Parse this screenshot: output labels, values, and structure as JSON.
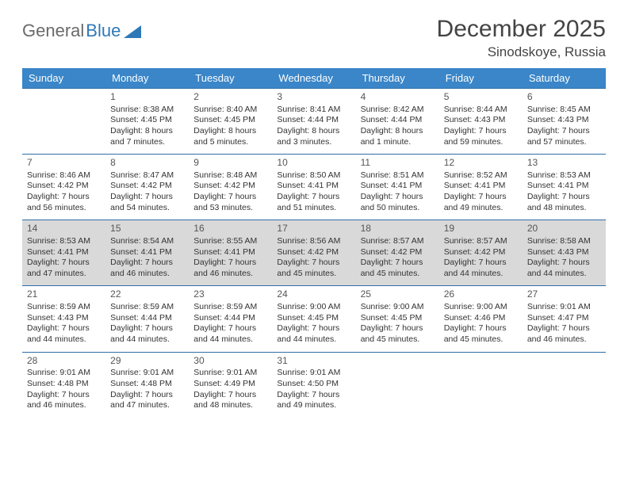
{
  "brand": {
    "part1": "General",
    "part2": "Blue"
  },
  "title": "December 2025",
  "location": "Sinodskoye, Russia",
  "colors": {
    "header_bg": "#3a86c8",
    "header_text": "#ffffff",
    "row_border": "#2f6fa8",
    "highlight_bg": "#d9d9d9",
    "text": "#333333",
    "brand_gray": "#6a6a6a",
    "brand_blue": "#2f78b7"
  },
  "day_headers": [
    "Sunday",
    "Monday",
    "Tuesday",
    "Wednesday",
    "Thursday",
    "Friday",
    "Saturday"
  ],
  "weeks": [
    {
      "highlight": false,
      "cells": [
        {
          "day": "",
          "lines": []
        },
        {
          "day": "1",
          "lines": [
            "Sunrise: 8:38 AM",
            "Sunset: 4:45 PM",
            "Daylight: 8 hours and 7 minutes."
          ]
        },
        {
          "day": "2",
          "lines": [
            "Sunrise: 8:40 AM",
            "Sunset: 4:45 PM",
            "Daylight: 8 hours and 5 minutes."
          ]
        },
        {
          "day": "3",
          "lines": [
            "Sunrise: 8:41 AM",
            "Sunset: 4:44 PM",
            "Daylight: 8 hours and 3 minutes."
          ]
        },
        {
          "day": "4",
          "lines": [
            "Sunrise: 8:42 AM",
            "Sunset: 4:44 PM",
            "Daylight: 8 hours and 1 minute."
          ]
        },
        {
          "day": "5",
          "lines": [
            "Sunrise: 8:44 AM",
            "Sunset: 4:43 PM",
            "Daylight: 7 hours and 59 minutes."
          ]
        },
        {
          "day": "6",
          "lines": [
            "Sunrise: 8:45 AM",
            "Sunset: 4:43 PM",
            "Daylight: 7 hours and 57 minutes."
          ]
        }
      ]
    },
    {
      "highlight": false,
      "cells": [
        {
          "day": "7",
          "lines": [
            "Sunrise: 8:46 AM",
            "Sunset: 4:42 PM",
            "Daylight: 7 hours and 56 minutes."
          ]
        },
        {
          "day": "8",
          "lines": [
            "Sunrise: 8:47 AM",
            "Sunset: 4:42 PM",
            "Daylight: 7 hours and 54 minutes."
          ]
        },
        {
          "day": "9",
          "lines": [
            "Sunrise: 8:48 AM",
            "Sunset: 4:42 PM",
            "Daylight: 7 hours and 53 minutes."
          ]
        },
        {
          "day": "10",
          "lines": [
            "Sunrise: 8:50 AM",
            "Sunset: 4:41 PM",
            "Daylight: 7 hours and 51 minutes."
          ]
        },
        {
          "day": "11",
          "lines": [
            "Sunrise: 8:51 AM",
            "Sunset: 4:41 PM",
            "Daylight: 7 hours and 50 minutes."
          ]
        },
        {
          "day": "12",
          "lines": [
            "Sunrise: 8:52 AM",
            "Sunset: 4:41 PM",
            "Daylight: 7 hours and 49 minutes."
          ]
        },
        {
          "day": "13",
          "lines": [
            "Sunrise: 8:53 AM",
            "Sunset: 4:41 PM",
            "Daylight: 7 hours and 48 minutes."
          ]
        }
      ]
    },
    {
      "highlight": true,
      "cells": [
        {
          "day": "14",
          "lines": [
            "Sunrise: 8:53 AM",
            "Sunset: 4:41 PM",
            "Daylight: 7 hours and 47 minutes."
          ]
        },
        {
          "day": "15",
          "lines": [
            "Sunrise: 8:54 AM",
            "Sunset: 4:41 PM",
            "Daylight: 7 hours and 46 minutes."
          ]
        },
        {
          "day": "16",
          "lines": [
            "Sunrise: 8:55 AM",
            "Sunset: 4:41 PM",
            "Daylight: 7 hours and 46 minutes."
          ]
        },
        {
          "day": "17",
          "lines": [
            "Sunrise: 8:56 AM",
            "Sunset: 4:42 PM",
            "Daylight: 7 hours and 45 minutes."
          ]
        },
        {
          "day": "18",
          "lines": [
            "Sunrise: 8:57 AM",
            "Sunset: 4:42 PM",
            "Daylight: 7 hours and 45 minutes."
          ]
        },
        {
          "day": "19",
          "lines": [
            "Sunrise: 8:57 AM",
            "Sunset: 4:42 PM",
            "Daylight: 7 hours and 44 minutes."
          ]
        },
        {
          "day": "20",
          "lines": [
            "Sunrise: 8:58 AM",
            "Sunset: 4:43 PM",
            "Daylight: 7 hours and 44 minutes."
          ]
        }
      ]
    },
    {
      "highlight": false,
      "cells": [
        {
          "day": "21",
          "lines": [
            "Sunrise: 8:59 AM",
            "Sunset: 4:43 PM",
            "Daylight: 7 hours and 44 minutes."
          ]
        },
        {
          "day": "22",
          "lines": [
            "Sunrise: 8:59 AM",
            "Sunset: 4:44 PM",
            "Daylight: 7 hours and 44 minutes."
          ]
        },
        {
          "day": "23",
          "lines": [
            "Sunrise: 8:59 AM",
            "Sunset: 4:44 PM",
            "Daylight: 7 hours and 44 minutes."
          ]
        },
        {
          "day": "24",
          "lines": [
            "Sunrise: 9:00 AM",
            "Sunset: 4:45 PM",
            "Daylight: 7 hours and 44 minutes."
          ]
        },
        {
          "day": "25",
          "lines": [
            "Sunrise: 9:00 AM",
            "Sunset: 4:45 PM",
            "Daylight: 7 hours and 45 minutes."
          ]
        },
        {
          "day": "26",
          "lines": [
            "Sunrise: 9:00 AM",
            "Sunset: 4:46 PM",
            "Daylight: 7 hours and 45 minutes."
          ]
        },
        {
          "day": "27",
          "lines": [
            "Sunrise: 9:01 AM",
            "Sunset: 4:47 PM",
            "Daylight: 7 hours and 46 minutes."
          ]
        }
      ]
    },
    {
      "highlight": false,
      "cells": [
        {
          "day": "28",
          "lines": [
            "Sunrise: 9:01 AM",
            "Sunset: 4:48 PM",
            "Daylight: 7 hours and 46 minutes."
          ]
        },
        {
          "day": "29",
          "lines": [
            "Sunrise: 9:01 AM",
            "Sunset: 4:48 PM",
            "Daylight: 7 hours and 47 minutes."
          ]
        },
        {
          "day": "30",
          "lines": [
            "Sunrise: 9:01 AM",
            "Sunset: 4:49 PM",
            "Daylight: 7 hours and 48 minutes."
          ]
        },
        {
          "day": "31",
          "lines": [
            "Sunrise: 9:01 AM",
            "Sunset: 4:50 PM",
            "Daylight: 7 hours and 49 minutes."
          ]
        },
        {
          "day": "",
          "lines": []
        },
        {
          "day": "",
          "lines": []
        },
        {
          "day": "",
          "lines": []
        }
      ]
    }
  ]
}
